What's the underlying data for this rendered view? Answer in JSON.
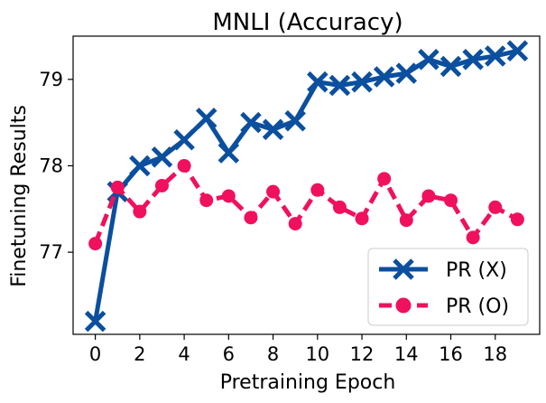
{
  "chart_data": {
    "type": "line",
    "title": "MNLI (Accuracy)",
    "xlabel": "Pretraining Epoch",
    "ylabel": "Finetuning Results",
    "xlim": [
      -1,
      20
    ],
    "ylim": [
      76.05,
      79.5
    ],
    "xticks": [
      0,
      2,
      4,
      6,
      8,
      10,
      12,
      14,
      16,
      18
    ],
    "yticks": [
      77,
      78,
      79
    ],
    "grid": false,
    "legend_position": "bottom-right",
    "x": [
      0,
      1,
      2,
      3,
      4,
      5,
      6,
      7,
      8,
      9,
      10,
      11,
      12,
      13,
      14,
      15,
      16,
      17,
      18,
      19
    ],
    "series": [
      {
        "name": "PR (X)",
        "color": "#0b4f9e",
        "marker": "x",
        "linestyle": "solid",
        "values": [
          76.2,
          77.7,
          78.0,
          78.1,
          78.3,
          78.55,
          78.15,
          78.5,
          78.42,
          78.52,
          78.97,
          78.93,
          78.97,
          79.03,
          79.07,
          79.23,
          79.15,
          79.23,
          79.27,
          79.33
        ]
      },
      {
        "name": "PR (O)",
        "color": "#f0105e",
        "marker": "o",
        "linestyle": "dashed",
        "values": [
          77.1,
          77.75,
          77.47,
          77.77,
          78.0,
          77.6,
          77.65,
          77.4,
          77.7,
          77.33,
          77.72,
          77.52,
          77.39,
          77.85,
          77.37,
          77.65,
          77.6,
          77.17,
          77.52,
          77.38
        ]
      }
    ]
  }
}
